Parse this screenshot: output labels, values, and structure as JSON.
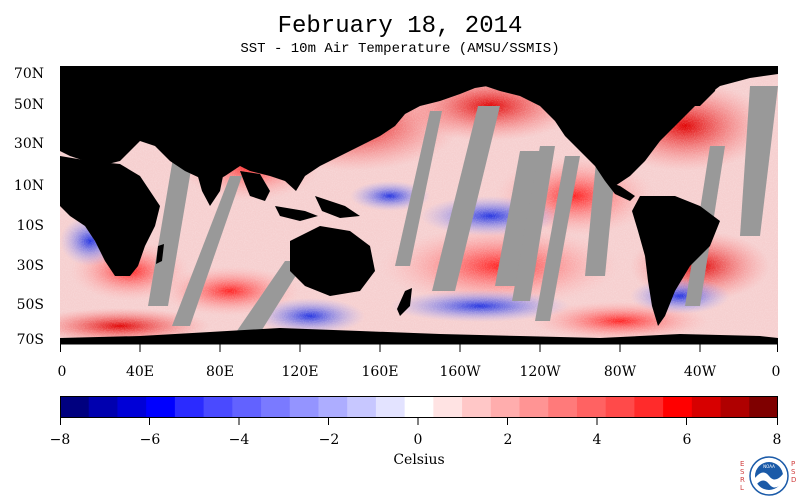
{
  "header": {
    "title": "February 18, 2014",
    "subtitle": "SST - 10m Air Temperature (AMSU/SSMIS)"
  },
  "map": {
    "latitude_labels": [
      "70N",
      "50N",
      "30N",
      "10N",
      "10S",
      "30S",
      "50S",
      "70S"
    ],
    "longitude_labels": [
      "0",
      "40E",
      "80E",
      "120E",
      "160E",
      "160W",
      "120W",
      "80W",
      "40W",
      "0"
    ],
    "colors": {
      "land": "#000000",
      "no_data": "#999999",
      "warm": "#ff0000",
      "cool": "#0000ff"
    }
  },
  "colorbar": {
    "tick_labels": [
      "−8",
      "−6",
      "−4",
      "−2",
      "0",
      "2",
      "4",
      "6",
      "8"
    ],
    "units": "Celsius",
    "range": [
      -8,
      8
    ],
    "colors": [
      "#00007f",
      "#0000af",
      "#0000d7",
      "#0000ff",
      "#2b2bff",
      "#4a4aff",
      "#6262ff",
      "#7a7aff",
      "#9494ff",
      "#adadff",
      "#c7c7ff",
      "#e3e3ff",
      "#ffffff",
      "#ffe3e3",
      "#ffc7c7",
      "#ffadad",
      "#ff9494",
      "#ff7a7a",
      "#ff6262",
      "#ff4a4a",
      "#ff2b2b",
      "#ff0000",
      "#d70000",
      "#af0000",
      "#7f0000"
    ]
  },
  "logo": {
    "left_text": "ESRL",
    "right_text": "PSD",
    "icon": "noaa-logo-icon"
  }
}
